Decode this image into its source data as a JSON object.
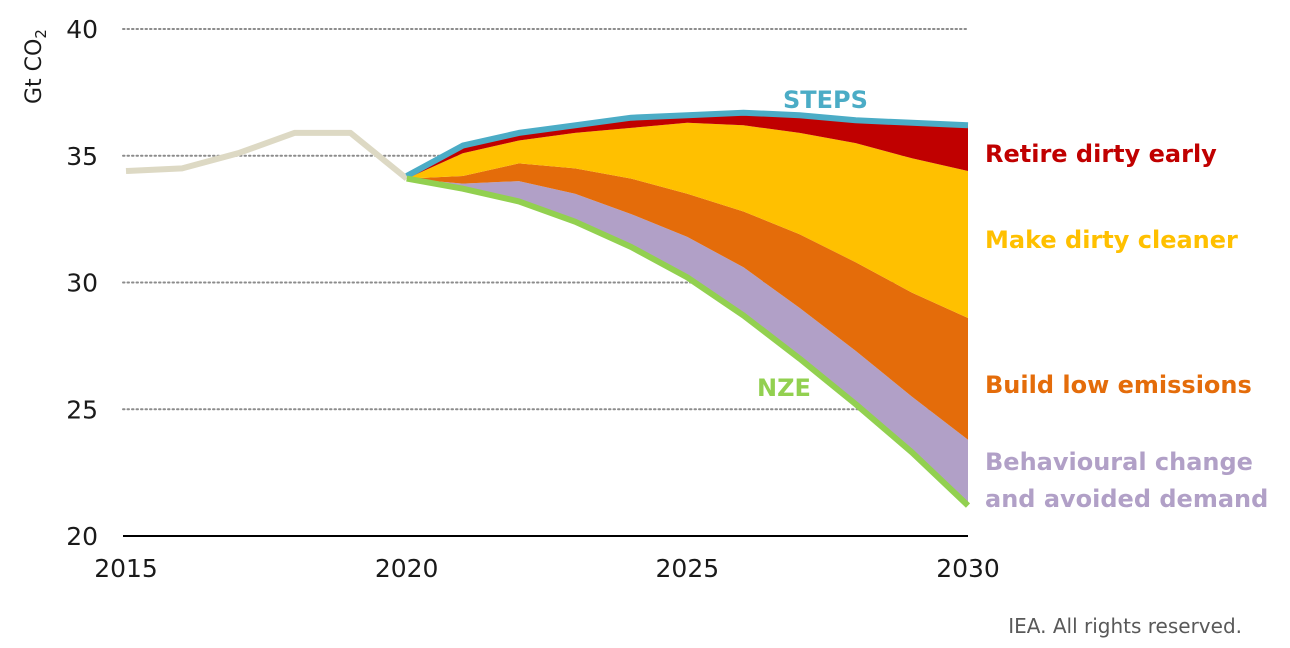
{
  "chart_data": {
    "type": "area",
    "ylabel": "Gt CO",
    "ylabel_sub": "2",
    "ylim": [
      20,
      40
    ],
    "xlim": [
      2015,
      2030
    ],
    "y_ticks": [
      20,
      25,
      30,
      35,
      40
    ],
    "x_ticks": [
      2015,
      2020,
      2025,
      2030
    ],
    "gridlines": "dotted",
    "historical": {
      "x": [
        2015,
        2016,
        2017,
        2018,
        2019,
        2020
      ],
      "values": [
        34.4,
        34.5,
        35.1,
        35.9,
        35.9,
        34.1
      ],
      "color": "#DDD9C4"
    },
    "x": [
      2020,
      2021,
      2022,
      2023,
      2024,
      2025,
      2026,
      2027,
      2028,
      2029,
      2030
    ],
    "steps": {
      "label": "STEPS",
      "color": "#4BACC6",
      "values": [
        34.2,
        35.4,
        35.9,
        36.2,
        36.5,
        36.6,
        36.7,
        36.6,
        36.4,
        36.3,
        36.2
      ]
    },
    "nze": {
      "label": "NZE",
      "color": "#92D050",
      "values": [
        34.1,
        33.7,
        33.2,
        32.4,
        31.4,
        30.2,
        28.7,
        27.0,
        25.2,
        23.3,
        21.2
      ]
    },
    "series": [
      {
        "name": "Behavioural change",
        "name_line2": "and avoided demand",
        "color": "#B1A0C7",
        "values": [
          34.1,
          33.9,
          34.0,
          33.5,
          32.7,
          31.8,
          30.6,
          29.0,
          27.3,
          25.5,
          23.8
        ]
      },
      {
        "name": "Build low emissions",
        "color": "#E46C0A",
        "values": [
          34.1,
          34.2,
          34.7,
          34.5,
          34.1,
          33.5,
          32.8,
          31.9,
          30.8,
          29.6,
          28.6
        ]
      },
      {
        "name": "Make dirty cleaner",
        "color": "#FFC000",
        "values": [
          34.1,
          35.1,
          35.6,
          35.9,
          36.1,
          36.3,
          36.2,
          35.9,
          35.5,
          34.9,
          34.4
        ]
      },
      {
        "name": "Retire dirty early",
        "color": "#C00000",
        "values": [
          34.2,
          35.4,
          35.9,
          36.2,
          36.5,
          36.6,
          36.7,
          36.6,
          36.4,
          36.3,
          36.2
        ]
      }
    ]
  },
  "credit": "IEA. All rights reserved."
}
